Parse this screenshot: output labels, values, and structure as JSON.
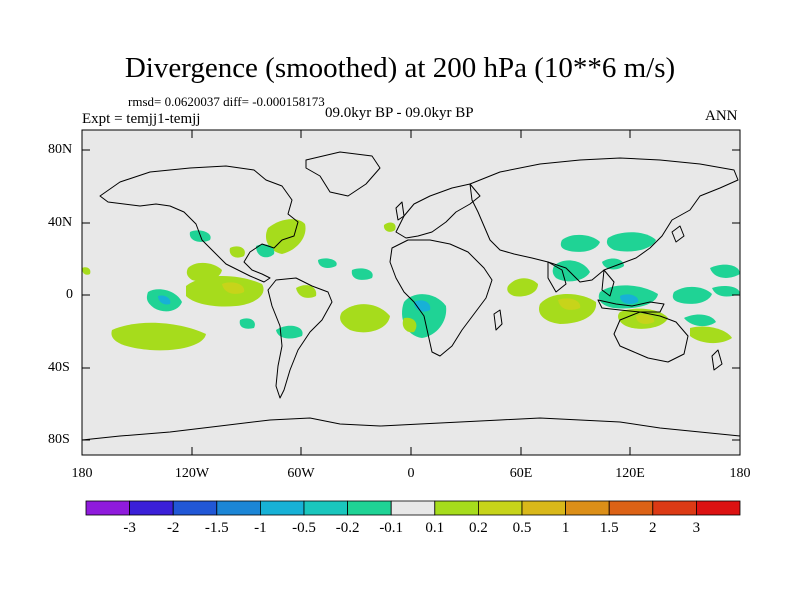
{
  "title": "Divergence (smoothed) at 200 hPa (10**6 m/s)",
  "stats": "rmsd= 0.0620037 diff= -0.000158173",
  "experiment": "Expt = temjj1-temjj",
  "period": "09.0kyr BP - 09.0kyr BP",
  "season": "ANN",
  "axes": {
    "lat_labels": [
      "80N",
      "40N",
      "0",
      "40S",
      "80S"
    ],
    "lon_labels": [
      "180",
      "120W",
      "60W",
      "0",
      "60E",
      "120E",
      "180"
    ]
  },
  "colorbar": {
    "labels": [
      "-3",
      "-2",
      "-1.5",
      "-1",
      "-0.5",
      "-0.2",
      "-0.1",
      "0.1",
      "0.2",
      "0.5",
      "1",
      "1.5",
      "2",
      "3"
    ],
    "colors": [
      "#8f1bdc",
      "#3b20d8",
      "#2157d6",
      "#1c86d6",
      "#17b1d6",
      "#1ac6bd",
      "#1fd395",
      "#e8e8e8",
      "#a6dc1c",
      "#c7d41a",
      "#d9b81a",
      "#dc8f18",
      "#dc6216",
      "#dc3a15",
      "#dc1212"
    ]
  },
  "colors": {
    "ocean": "#e8e8e8",
    "coast": "#000000"
  }
}
